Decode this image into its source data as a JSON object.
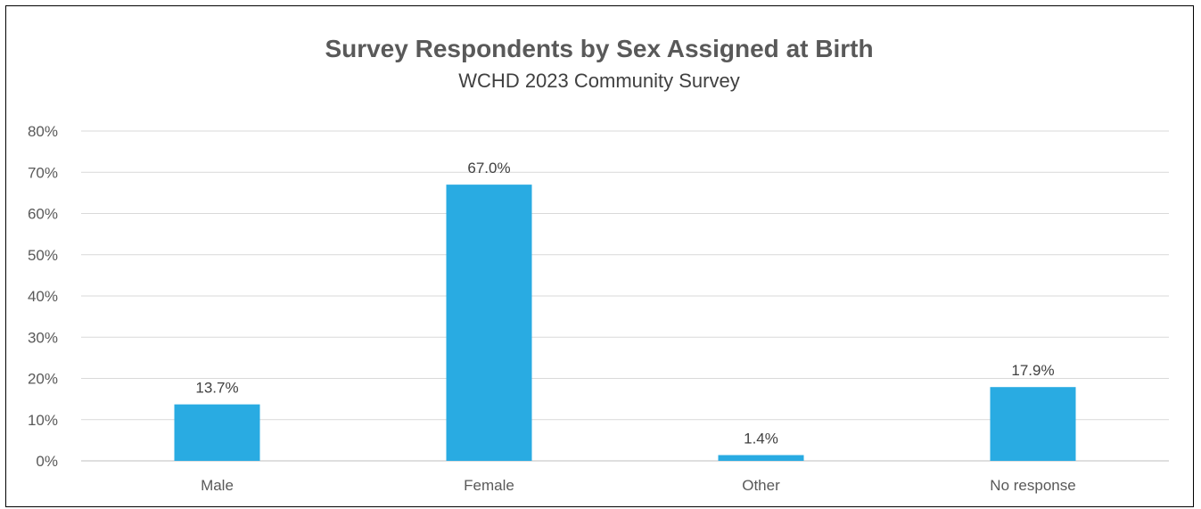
{
  "chart_data": {
    "type": "bar",
    "title": "Survey Respondents by Sex Assigned at Birth",
    "subtitle": "WCHD 2023 Community Survey",
    "categories": [
      "Male",
      "Female",
      "Other",
      "No response"
    ],
    "values": [
      13.7,
      67.0,
      1.4,
      17.9
    ],
    "data_labels": [
      "13.7%",
      "67.0%",
      "1.4%",
      "17.9%"
    ],
    "ylim": [
      0,
      80
    ],
    "yticks": [
      0,
      10,
      20,
      30,
      40,
      50,
      60,
      70,
      80
    ],
    "ytick_labels": [
      "0%",
      "10%",
      "20%",
      "30%",
      "40%",
      "50%",
      "60%",
      "70%",
      "80%"
    ],
    "xlabel": "",
    "ylabel": "",
    "grid": true,
    "legend": "none",
    "bar_color": "#29ABE2"
  }
}
